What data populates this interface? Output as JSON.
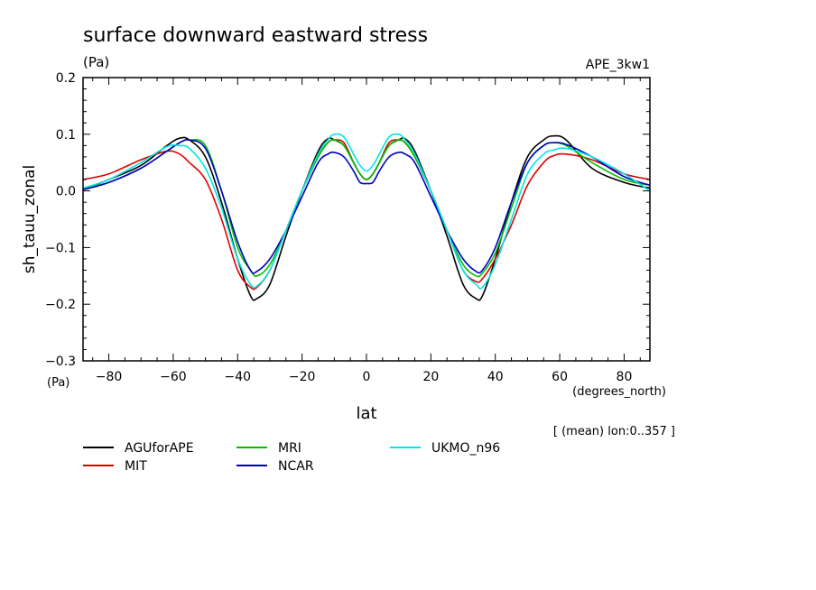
{
  "chart_data": {
    "type": "line",
    "title": "surface downward eastward stress",
    "units_left": "(Pa)",
    "experiment": "APE_3kw1",
    "ylabel": "sh_tauu_zonal",
    "xlabel": "lat",
    "x_units": "(degrees_north)",
    "y_units_bottom": "(Pa)",
    "averaging_note": "[ (mean) lon:0..357 ]",
    "xlim": [
      -88,
      88
    ],
    "ylim": [
      -0.3,
      0.2
    ],
    "xticks": [
      -80,
      -60,
      -40,
      -20,
      0,
      20,
      40,
      60,
      80
    ],
    "yticks": [
      -0.3,
      -0.2,
      -0.1,
      0.0,
      0.1,
      0.2
    ],
    "ytick_labels": [
      "−0.3",
      "−0.2",
      "−0.1",
      "0.0",
      "0.1",
      "0.2"
    ],
    "xtick_labels": [
      "−80",
      "−60",
      "−40",
      "−20",
      "0",
      "20",
      "40",
      "60",
      "80"
    ],
    "x": [
      -88,
      -80,
      -70,
      -62,
      -58,
      -55,
      -50,
      -45,
      -40,
      -36,
      -34,
      -30,
      -25,
      -20,
      -15,
      -12,
      -10,
      -7,
      -4,
      -2,
      0,
      2,
      4,
      7,
      10,
      12,
      15,
      20,
      25,
      30,
      34,
      36,
      40,
      45,
      50,
      55,
      58,
      62,
      70,
      80,
      88
    ],
    "series": [
      {
        "name": "AGUforAPE",
        "color": "#000000",
        "values": [
          0.002,
          0.02,
          0.045,
          0.08,
          0.093,
          0.09,
          0.06,
          -0.02,
          -0.12,
          -0.185,
          -0.19,
          -0.165,
          -0.08,
          0.0,
          0.07,
          0.092,
          0.09,
          0.08,
          0.05,
          0.03,
          0.02,
          0.03,
          0.05,
          0.08,
          0.09,
          0.092,
          0.07,
          0.0,
          -0.08,
          -0.165,
          -0.19,
          -0.185,
          -0.12,
          -0.02,
          0.06,
          0.09,
          0.097,
          0.09,
          0.04,
          0.015,
          0.005
        ]
      },
      {
        "name": "MIT",
        "color": "#e00000",
        "values": [
          0.02,
          0.03,
          0.055,
          0.07,
          0.065,
          0.05,
          0.02,
          -0.05,
          -0.14,
          -0.17,
          -0.17,
          -0.14,
          -0.07,
          0.0,
          0.06,
          0.085,
          0.09,
          0.085,
          0.05,
          0.03,
          0.02,
          0.03,
          0.05,
          0.085,
          0.09,
          0.085,
          0.06,
          0.0,
          -0.07,
          -0.14,
          -0.16,
          -0.155,
          -0.12,
          -0.06,
          0.01,
          0.05,
          0.062,
          0.065,
          0.055,
          0.03,
          0.02
        ]
      },
      {
        "name": "MRI",
        "color": "#00c000",
        "values": [
          0.005,
          0.015,
          0.04,
          0.07,
          0.085,
          0.09,
          0.08,
          0.0,
          -0.1,
          -0.14,
          -0.15,
          -0.13,
          -0.07,
          0.0,
          0.06,
          0.085,
          0.09,
          0.08,
          0.05,
          0.03,
          0.02,
          0.03,
          0.05,
          0.08,
          0.09,
          0.085,
          0.06,
          0.0,
          -0.07,
          -0.13,
          -0.15,
          -0.145,
          -0.11,
          -0.03,
          0.05,
          0.08,
          0.085,
          0.08,
          0.05,
          0.02,
          0.01
        ]
      },
      {
        "name": "NCAR",
        "color": "#0000c0",
        "values": [
          0.002,
          0.015,
          0.04,
          0.07,
          0.085,
          0.09,
          0.075,
          0.0,
          -0.09,
          -0.14,
          -0.142,
          -0.12,
          -0.07,
          -0.01,
          0.05,
          0.065,
          0.068,
          0.06,
          0.035,
          0.015,
          0.013,
          0.015,
          0.035,
          0.06,
          0.068,
          0.065,
          0.05,
          -0.01,
          -0.07,
          -0.12,
          -0.142,
          -0.14,
          -0.1,
          -0.02,
          0.05,
          0.08,
          0.085,
          0.082,
          0.06,
          0.025,
          0.01
        ]
      },
      {
        "name": "UKMO_n96",
        "color": "#00e5e5",
        "values": [
          0.005,
          0.02,
          0.05,
          0.078,
          0.08,
          0.075,
          0.04,
          -0.03,
          -0.12,
          -0.165,
          -0.168,
          -0.14,
          -0.07,
          0.0,
          0.065,
          0.09,
          0.1,
          0.095,
          0.065,
          0.045,
          0.035,
          0.045,
          0.065,
          0.095,
          0.1,
          0.09,
          0.065,
          0.0,
          -0.07,
          -0.14,
          -0.165,
          -0.17,
          -0.13,
          -0.05,
          0.03,
          0.065,
          0.072,
          0.075,
          0.06,
          0.03,
          0.0
        ]
      }
    ],
    "legend_placement": "bottom-left"
  }
}
